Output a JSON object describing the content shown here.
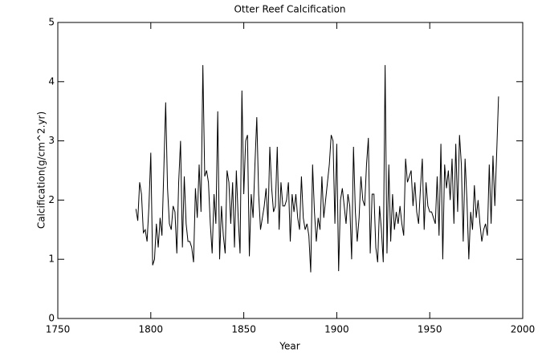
{
  "chart_data": {
    "type": "line",
    "title": "Otter Reef Calcification",
    "x_label": "Year",
    "y_label": "Calcification(g/cm^2.yr)",
    "x": [
      1792,
      1793,
      1794,
      1795,
      1796,
      1797,
      1798,
      1799,
      1800,
      1801,
      1802,
      1803,
      1804,
      1805,
      1806,
      1807,
      1808,
      1809,
      1810,
      1811,
      1812,
      1813,
      1814,
      1815,
      1816,
      1817,
      1818,
      1819,
      1820,
      1821,
      1822,
      1823,
      1824,
      1825,
      1826,
      1827,
      1828,
      1829,
      1830,
      1831,
      1832,
      1833,
      1834,
      1835,
      1836,
      1837,
      1838,
      1839,
      1840,
      1841,
      1842,
      1843,
      1844,
      1845,
      1846,
      1847,
      1848,
      1849,
      1850,
      1851,
      1852,
      1853,
      1854,
      1855,
      1856,
      1857,
      1858,
      1859,
      1860,
      1861,
      1862,
      1863,
      1864,
      1865,
      1866,
      1867,
      1868,
      1869,
      1870,
      1871,
      1872,
      1873,
      1874,
      1875,
      1876,
      1877,
      1878,
      1879,
      1880,
      1881,
      1882,
      1883,
      1884,
      1885,
      1886,
      1887,
      1888,
      1889,
      1890,
      1891,
      1892,
      1893,
      1894,
      1895,
      1896,
      1897,
      1898,
      1899,
      1900,
      1901,
      1902,
      1903,
      1904,
      1905,
      1906,
      1907,
      1908,
      1909,
      1910,
      1911,
      1912,
      1913,
      1914,
      1915,
      1916,
      1917,
      1918,
      1919,
      1920,
      1921,
      1922,
      1923,
      1924,
      1925,
      1926,
      1927,
      1928,
      1929,
      1930,
      1931,
      1932,
      1933,
      1934,
      1935,
      1936,
      1937,
      1938,
      1939,
      1940,
      1941,
      1942,
      1943,
      1944,
      1945,
      1946,
      1947,
      1948,
      1949,
      1950,
      1951,
      1952,
      1953,
      1954,
      1955,
      1956,
      1957,
      1958,
      1959,
      1960,
      1961,
      1962,
      1963,
      1964,
      1965,
      1966,
      1967,
      1968,
      1969,
      1970,
      1971,
      1972,
      1973,
      1974,
      1975,
      1976,
      1977,
      1978,
      1979,
      1980,
      1981,
      1982,
      1983,
      1984,
      1985,
      1986,
      1987
    ],
    "series": [
      {
        "name": "Calcification",
        "color": "#000000",
        "values": [
          1.85,
          1.65,
          2.3,
          2.1,
          1.45,
          1.5,
          1.3,
          1.9,
          2.8,
          0.9,
          1.0,
          1.6,
          1.2,
          1.7,
          1.4,
          2.5,
          3.65,
          2.2,
          1.6,
          1.5,
          1.9,
          1.8,
          1.1,
          2.3,
          3.0,
          1.2,
          2.4,
          1.6,
          1.3,
          1.3,
          1.2,
          0.95,
          2.2,
          1.7,
          2.6,
          1.8,
          4.28,
          2.4,
          2.5,
          2.3,
          1.6,
          1.1,
          2.1,
          1.6,
          3.5,
          1.0,
          1.9,
          1.4,
          1.1,
          2.5,
          2.3,
          1.6,
          2.3,
          1.2,
          2.5,
          1.7,
          1.1,
          3.85,
          2.1,
          3.0,
          3.1,
          1.05,
          2.1,
          1.7,
          2.6,
          3.4,
          2.1,
          1.5,
          1.7,
          1.9,
          2.2,
          1.6,
          2.9,
          2.2,
          1.8,
          1.9,
          2.9,
          1.5,
          2.3,
          1.9,
          1.9,
          2.0,
          2.3,
          1.3,
          2.1,
          1.8,
          2.1,
          1.7,
          1.5,
          2.4,
          1.7,
          1.5,
          1.6,
          1.4,
          0.78,
          2.6,
          1.8,
          1.3,
          1.7,
          1.5,
          2.4,
          1.7,
          2.0,
          2.3,
          2.6,
          3.1,
          3.0,
          1.6,
          2.95,
          0.8,
          2.0,
          2.2,
          1.9,
          1.6,
          2.1,
          1.9,
          1.0,
          2.9,
          1.8,
          1.3,
          1.7,
          2.4,
          2.0,
          1.9,
          2.6,
          3.05,
          1.1,
          2.1,
          2.1,
          1.2,
          0.95,
          1.9,
          1.5,
          0.95,
          4.28,
          1.1,
          2.6,
          1.3,
          2.1,
          1.5,
          1.8,
          1.6,
          1.9,
          1.6,
          1.4,
          2.7,
          2.3,
          2.4,
          2.5,
          1.9,
          2.3,
          1.8,
          1.6,
          2.2,
          2.7,
          1.5,
          2.3,
          1.9,
          1.8,
          1.8,
          1.7,
          1.6,
          2.4,
          1.4,
          2.95,
          1.0,
          2.6,
          2.2,
          2.5,
          2.0,
          2.7,
          1.6,
          2.95,
          1.8,
          3.1,
          2.6,
          1.3,
          2.7,
          2.0,
          1.0,
          1.8,
          1.5,
          2.25,
          1.7,
          2.0,
          1.6,
          1.3,
          1.5,
          1.6,
          1.4,
          2.6,
          1.6,
          2.75,
          1.9,
          2.8,
          3.75
        ]
      }
    ],
    "xlim": [
      1750,
      2000
    ],
    "xticks": [
      1750,
      1800,
      1850,
      1900,
      1950,
      2000
    ],
    "ylim": [
      0,
      5
    ],
    "yticks": [
      0,
      1,
      2,
      3,
      4,
      5
    ]
  }
}
